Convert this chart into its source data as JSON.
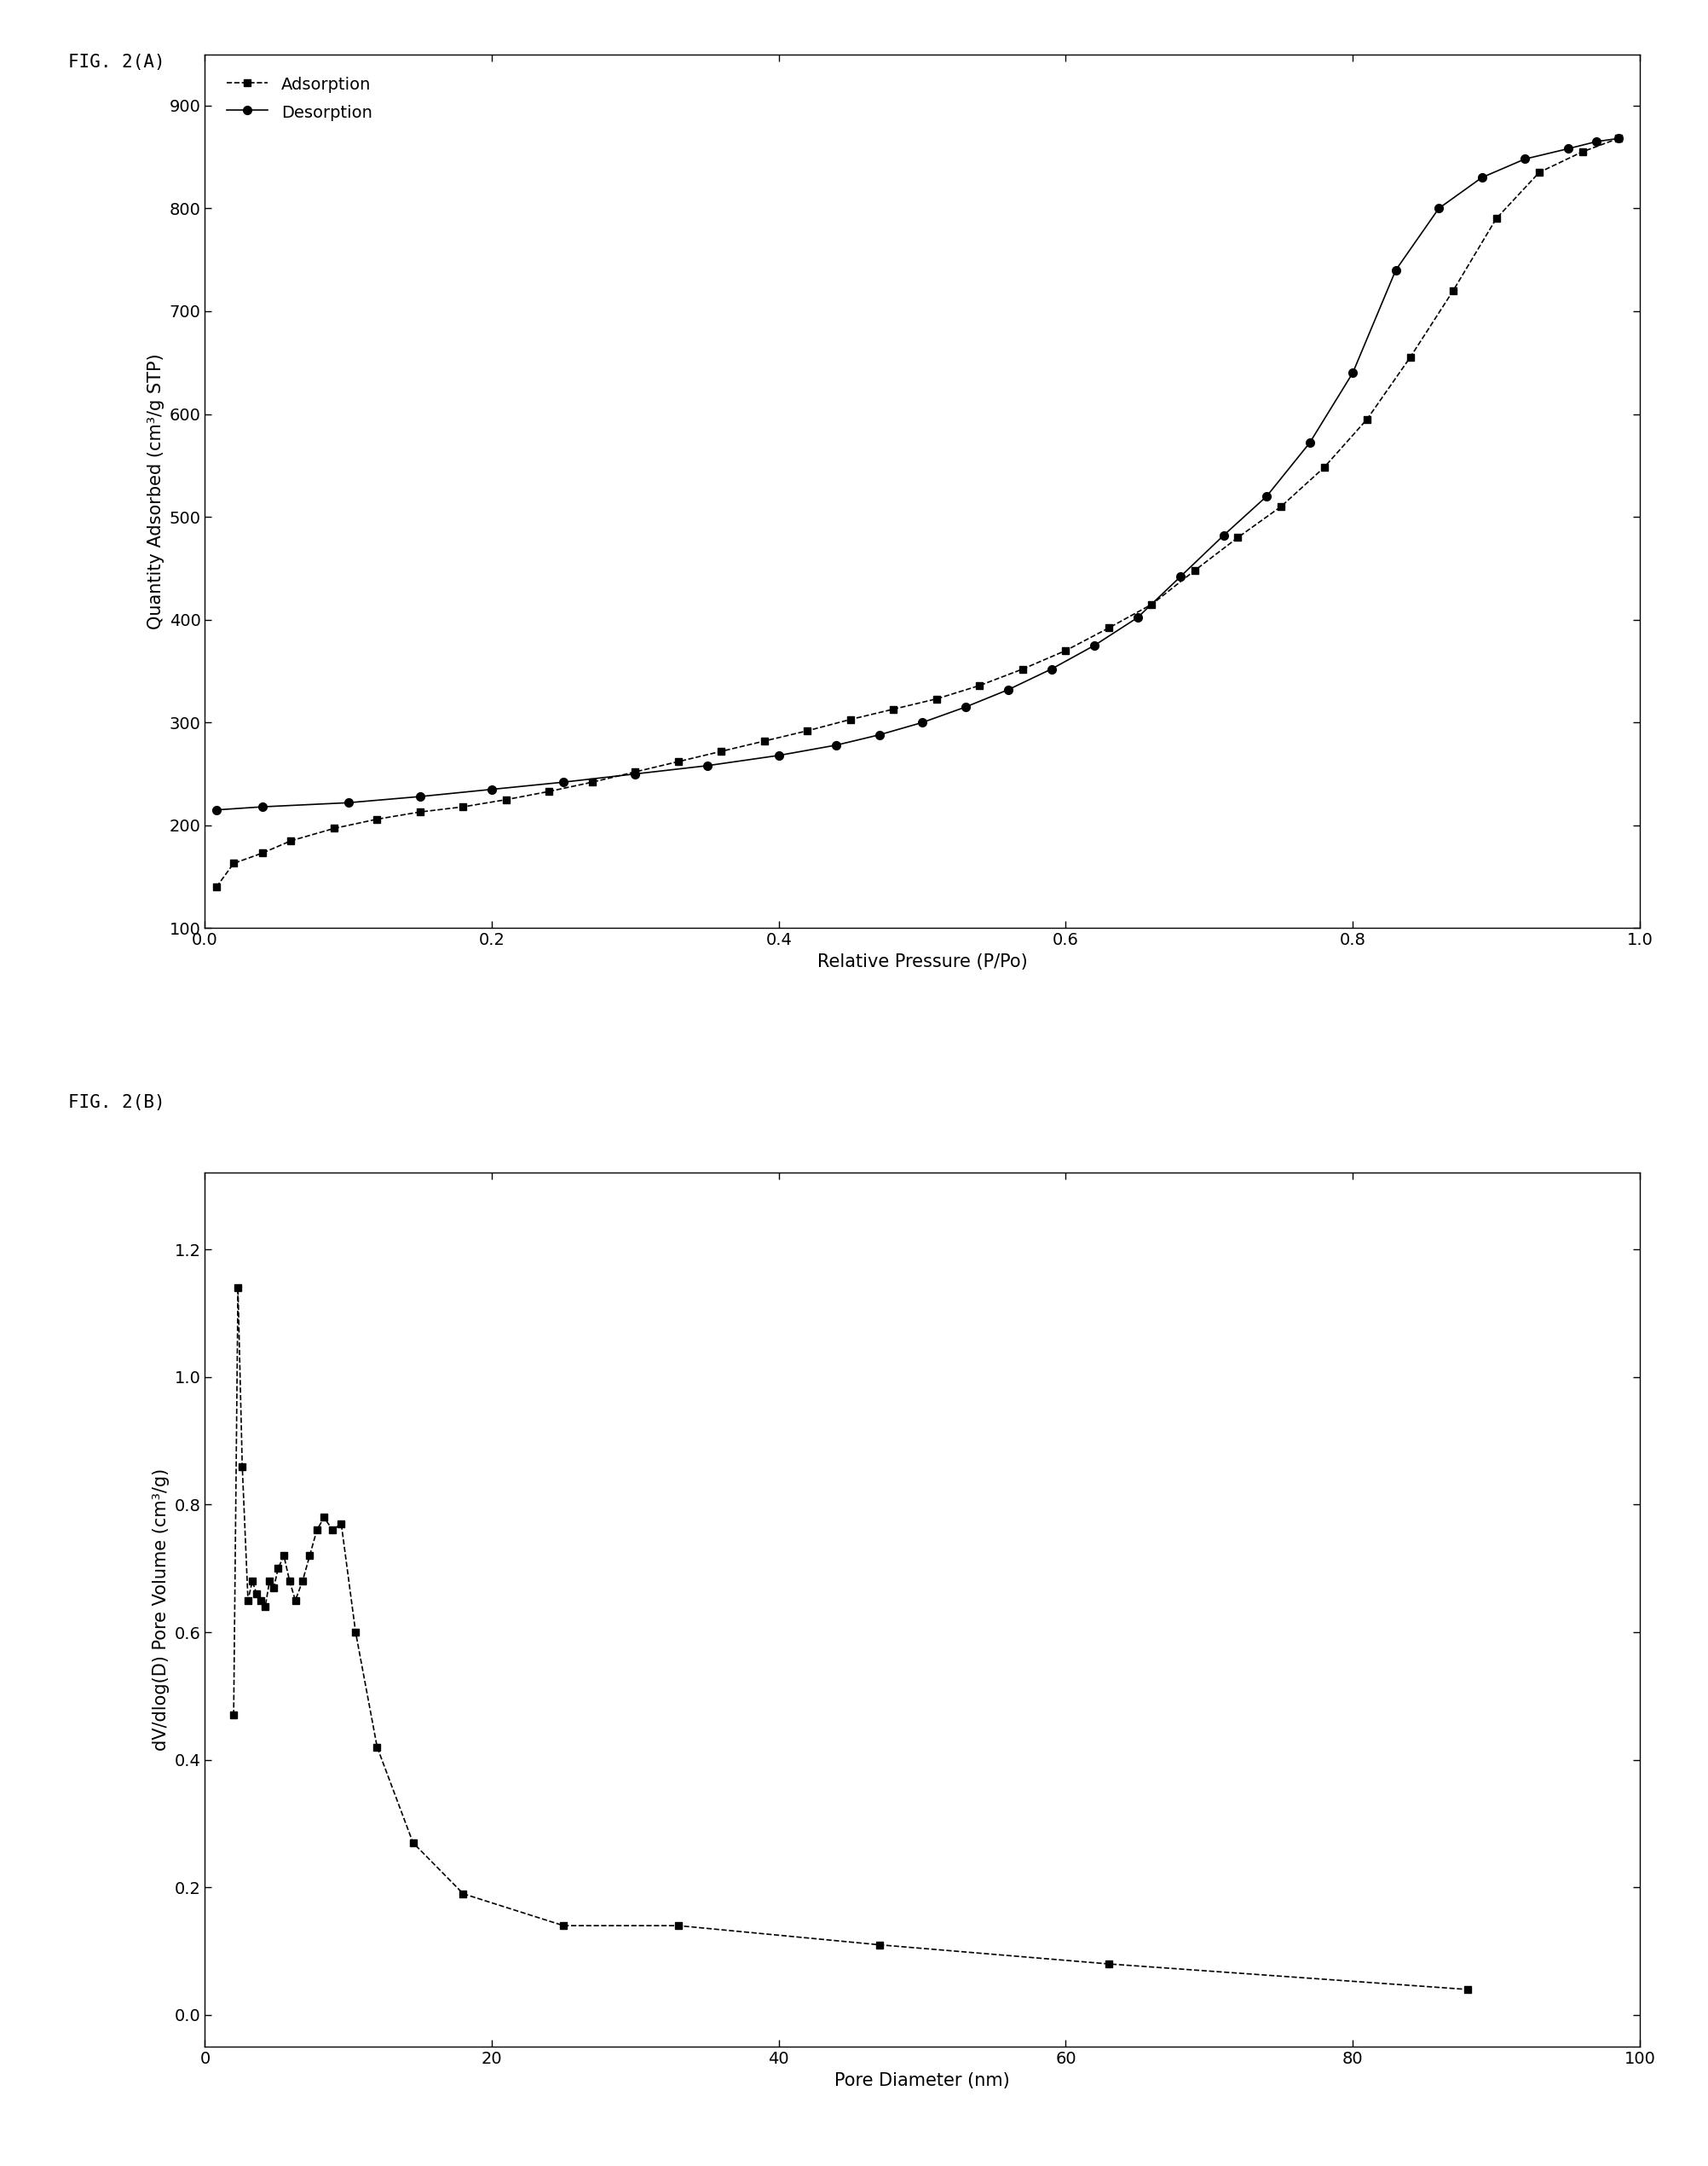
{
  "fig_label_a": "FIG. 2(A)",
  "fig_label_b": "FIG. 2(B)",
  "plot_a": {
    "xlabel": "Relative Pressure (P/Po)",
    "ylabel": "Quantity Adsorbed (cm³/g STP)",
    "xlim": [
      0.0,
      1.0
    ],
    "ylim": [
      100,
      950
    ],
    "yticks": [
      100,
      200,
      300,
      400,
      500,
      600,
      700,
      800,
      900
    ],
    "xticks": [
      0.0,
      0.2,
      0.4,
      0.6,
      0.8,
      1.0
    ],
    "adsorption_x": [
      0.008,
      0.02,
      0.04,
      0.06,
      0.09,
      0.12,
      0.15,
      0.18,
      0.21,
      0.24,
      0.27,
      0.3,
      0.33,
      0.36,
      0.39,
      0.42,
      0.45,
      0.48,
      0.51,
      0.54,
      0.57,
      0.6,
      0.63,
      0.66,
      0.69,
      0.72,
      0.75,
      0.78,
      0.81,
      0.84,
      0.87,
      0.9,
      0.93,
      0.96,
      0.985
    ],
    "adsorption_y": [
      140,
      163,
      173,
      185,
      197,
      206,
      213,
      218,
      225,
      233,
      242,
      252,
      262,
      272,
      282,
      292,
      303,
      313,
      323,
      336,
      352,
      370,
      392,
      415,
      448,
      480,
      510,
      548,
      595,
      655,
      720,
      790,
      835,
      855,
      868
    ],
    "desorption_x": [
      0.008,
      0.04,
      0.1,
      0.15,
      0.2,
      0.25,
      0.3,
      0.35,
      0.4,
      0.44,
      0.47,
      0.5,
      0.53,
      0.56,
      0.59,
      0.62,
      0.65,
      0.68,
      0.71,
      0.74,
      0.77,
      0.8,
      0.83,
      0.86,
      0.89,
      0.92,
      0.95,
      0.97,
      0.985
    ],
    "desorption_y": [
      215,
      218,
      222,
      228,
      235,
      242,
      250,
      258,
      268,
      278,
      288,
      300,
      315,
      332,
      352,
      375,
      402,
      442,
      482,
      520,
      572,
      640,
      740,
      800,
      830,
      848,
      858,
      865,
      868
    ],
    "legend_adsorption": "Adsorption",
    "legend_desorption": "Desorption"
  },
  "plot_b": {
    "xlabel": "Pore Diameter (nm)",
    "ylabel": "dV/dlog(D) Pore Volume (cm³/g)",
    "xlim": [
      0,
      100
    ],
    "ylim": [
      -0.05,
      1.32
    ],
    "yticks": [
      0.0,
      0.2,
      0.4,
      0.6,
      0.8,
      1.0,
      1.2
    ],
    "xticks": [
      0,
      20,
      40,
      60,
      80,
      100
    ],
    "x": [
      2.0,
      2.3,
      2.6,
      3.0,
      3.3,
      3.6,
      3.9,
      4.2,
      4.5,
      4.8,
      5.1,
      5.5,
      5.9,
      6.3,
      6.8,
      7.3,
      7.8,
      8.3,
      8.9,
      9.5,
      10.5,
      12.0,
      14.5,
      18.0,
      25.0,
      33.0,
      47.0,
      63.0,
      88.0
    ],
    "y": [
      0.47,
      1.14,
      0.86,
      0.65,
      0.68,
      0.66,
      0.65,
      0.64,
      0.68,
      0.67,
      0.7,
      0.72,
      0.68,
      0.65,
      0.68,
      0.72,
      0.76,
      0.78,
      0.76,
      0.77,
      0.6,
      0.42,
      0.27,
      0.19,
      0.14,
      0.14,
      0.11,
      0.08,
      0.04
    ]
  },
  "line_color": "#000000",
  "marker_color": "#000000",
  "bg_color": "#ffffff",
  "label_fontsize": 15,
  "tick_fontsize": 14,
  "legend_fontsize": 14,
  "fig_label_fontsize": 15
}
